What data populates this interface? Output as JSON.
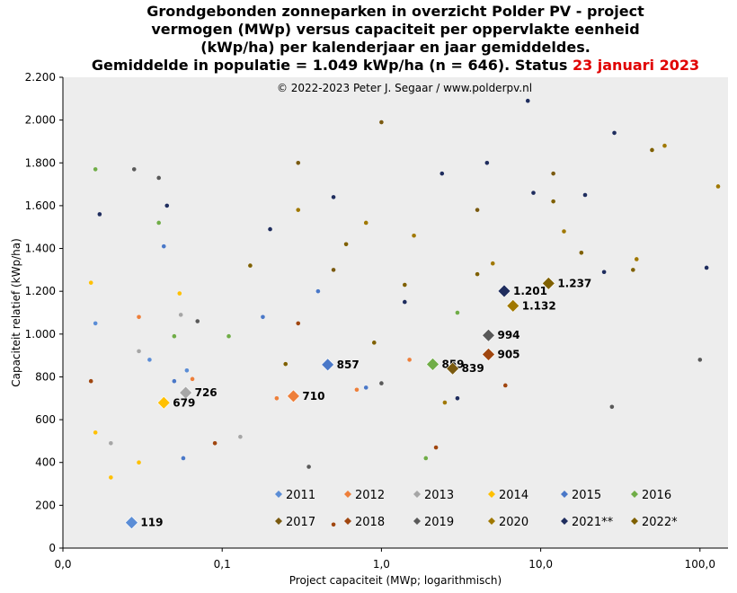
{
  "chart_data": {
    "type": "scatter",
    "title_lines": [
      "Grondgebonden zonneparken in overzicht Polder PV - project",
      "vermogen (MWp) versus capaciteit per oppervlakte eenheid",
      "(kWp/ha) per kalenderjaar en jaar gemiddeldes."
    ],
    "title_line4_prefix": "Gemiddelde in populatie = 1.049 kWp/ha (n = 646). Status ",
    "title_line4_date": "23 januari 2023",
    "copyright": "© 2022-2023 Peter J. Segaar / www.polderpv.nl",
    "xlabel": "Project capaciteit (MWp; logarithmisch)",
    "ylabel": "Capaciteit relatief (kWp/ha)",
    "x_scale": "log",
    "xlim": [
      0.01,
      150
    ],
    "ylim": [
      0,
      2200
    ],
    "x_ticks": [
      {
        "value": 0.01,
        "label": "0,0"
      },
      {
        "value": 0.1,
        "label": "0,1"
      },
      {
        "value": 1,
        "label": "1,0"
      },
      {
        "value": 10,
        "label": "10,0"
      },
      {
        "value": 100,
        "label": "100,0"
      }
    ],
    "y_ticks": [
      {
        "value": 0,
        "label": "0"
      },
      {
        "value": 200,
        "label": "200"
      },
      {
        "value": 400,
        "label": "400"
      },
      {
        "value": 600,
        "label": "600"
      },
      {
        "value": 800,
        "label": "800"
      },
      {
        "value": 1000,
        "label": "1.000"
      },
      {
        "value": 1200,
        "label": "1.200"
      },
      {
        "value": 1400,
        "label": "1.400"
      },
      {
        "value": 1600,
        "label": "1.600"
      },
      {
        "value": 1800,
        "label": "1.800"
      },
      {
        "value": 2000,
        "label": "2.000"
      },
      {
        "value": 2200,
        "label": "2.200"
      }
    ],
    "grid": false,
    "background": "#ededed",
    "series": [
      {
        "name": "2011",
        "color": "#5b8dd6",
        "points": [
          [
            0.016,
            1050
          ],
          [
            0.035,
            880
          ],
          [
            0.06,
            830
          ]
        ],
        "average": {
          "x": 0.027,
          "y": 119,
          "label": "119"
        }
      },
      {
        "name": "2012",
        "color": "#ee7f3a",
        "points": [
          [
            0.03,
            1080
          ],
          [
            0.065,
            790
          ],
          [
            0.22,
            700
          ],
          [
            0.7,
            740
          ],
          [
            1.5,
            880
          ]
        ],
        "average": {
          "x": 0.28,
          "y": 710,
          "label": "710"
        }
      },
      {
        "name": "2013",
        "color": "#a6a6a6",
        "points": [
          [
            0.03,
            920
          ],
          [
            0.055,
            1090
          ],
          [
            0.13,
            520
          ],
          [
            0.02,
            490
          ]
        ],
        "average": {
          "x": 0.059,
          "y": 726,
          "label": "726"
        }
      },
      {
        "name": "2014",
        "color": "#ffc000",
        "points": [
          [
            0.016,
            540
          ],
          [
            0.02,
            330
          ],
          [
            0.03,
            400
          ],
          [
            0.015,
            1240
          ],
          [
            0.054,
            1190
          ]
        ],
        "average": {
          "x": 0.043,
          "y": 679,
          "label": "679"
        }
      },
      {
        "name": "2015",
        "color": "#4a78c8",
        "points": [
          [
            0.043,
            1410
          ],
          [
            0.057,
            420
          ],
          [
            0.05,
            780
          ],
          [
            0.18,
            1080
          ],
          [
            0.4,
            1200
          ],
          [
            0.8,
            750
          ]
        ],
        "average": {
          "x": 0.46,
          "y": 857,
          "label": "857"
        }
      },
      {
        "name": "2016",
        "color": "#70ad47",
        "points": [
          [
            0.016,
            1770
          ],
          [
            0.04,
            1520
          ],
          [
            0.05,
            990
          ],
          [
            0.11,
            990
          ],
          [
            1.9,
            420
          ],
          [
            3.0,
            1100
          ]
        ],
        "average": {
          "x": 2.1,
          "y": 859,
          "label": "859"
        }
      },
      {
        "name": "2017",
        "color": "#7a5a10",
        "points": [
          [
            1.0,
            1990
          ],
          [
            0.3,
            1800
          ],
          [
            4.0,
            1580
          ],
          [
            12.0,
            1750
          ],
          [
            0.5,
            1300
          ]
        ],
        "average": {
          "x": 2.8,
          "y": 839,
          "label": "839"
        }
      },
      {
        "name": "2018",
        "color": "#a0460f",
        "points": [
          [
            0.5,
            110
          ],
          [
            0.09,
            490
          ],
          [
            0.3,
            1050
          ],
          [
            2.2,
            470
          ],
          [
            6.0,
            760
          ],
          [
            0.015,
            780
          ]
        ],
        "average": {
          "x": 4.7,
          "y": 905,
          "label": "905"
        }
      },
      {
        "name": "2019",
        "color": "#595959",
        "points": [
          [
            0.028,
            1770
          ],
          [
            0.04,
            1730
          ],
          [
            0.07,
            1060
          ],
          [
            0.35,
            380
          ],
          [
            1.0,
            770
          ],
          [
            100,
            880
          ],
          [
            28,
            660
          ]
        ],
        "average": {
          "x": 4.7,
          "y": 994,
          "label": "994"
        }
      },
      {
        "name": "2020",
        "color": "#a07800",
        "points": [
          [
            0.3,
            1580
          ],
          [
            0.8,
            1520
          ],
          [
            1.6,
            1460
          ],
          [
            5.0,
            1330
          ],
          [
            14.0,
            1480
          ],
          [
            40.0,
            1350
          ],
          [
            130,
            1690
          ],
          [
            60,
            1880
          ],
          [
            2.5,
            680
          ]
        ],
        "average": {
          "x": 6.7,
          "y": 1132,
          "label": "1.132"
        }
      },
      {
        "name": "2021**",
        "color": "#1f2d5e",
        "points": [
          [
            0.017,
            1560
          ],
          [
            0.045,
            1600
          ],
          [
            0.2,
            1490
          ],
          [
            0.5,
            1640
          ],
          [
            1.4,
            1150
          ],
          [
            2.4,
            1750
          ],
          [
            4.6,
            1800
          ],
          [
            9.0,
            1660
          ],
          [
            19.0,
            1650
          ],
          [
            29,
            1940
          ],
          [
            25,
            1290
          ],
          [
            110,
            1310
          ],
          [
            8.3,
            2090
          ],
          [
            3.0,
            700
          ]
        ],
        "average": {
          "x": 5.9,
          "y": 1201,
          "label": "1.201"
        }
      },
      {
        "name": "2022*",
        "color": "#7f6000",
        "points": [
          [
            0.15,
            1320
          ],
          [
            0.6,
            1420
          ],
          [
            1.4,
            1230
          ],
          [
            4.0,
            1280
          ],
          [
            12.0,
            1620
          ],
          [
            18.0,
            1380
          ],
          [
            38,
            1300
          ],
          [
            50,
            1860
          ],
          [
            0.25,
            860
          ],
          [
            0.9,
            960
          ]
        ],
        "average": {
          "x": 11.2,
          "y": 1237,
          "label": "1.237"
        }
      }
    ],
    "legend": {
      "placement": "bottom-right",
      "rows": [
        [
          "2011",
          "2012",
          "2013",
          "2014",
          "2015",
          "2016"
        ],
        [
          "2017",
          "2018",
          "2019",
          "2020",
          "2021**",
          "2022*"
        ]
      ]
    }
  }
}
